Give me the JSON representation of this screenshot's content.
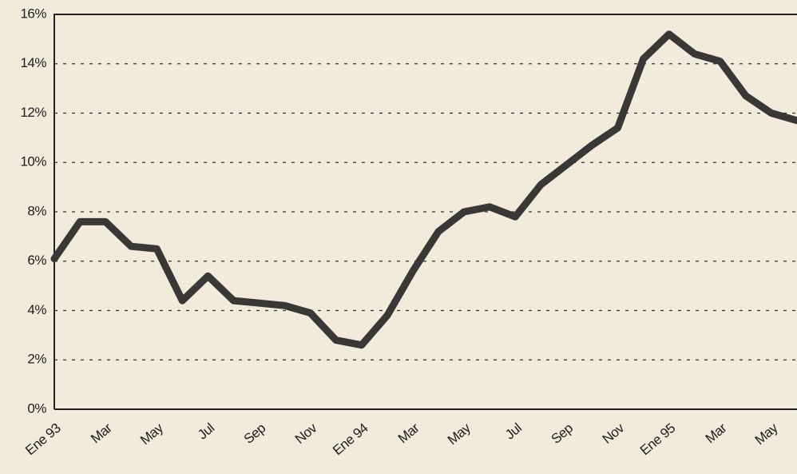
{
  "chart_data": {
    "type": "line",
    "categories": [
      "Ene 93",
      null,
      "Mar",
      null,
      "May",
      null,
      "Jul",
      null,
      "Sep",
      null,
      "Nov",
      null,
      "Ene 94",
      null,
      "Mar",
      null,
      "May",
      null,
      "Jul",
      null,
      "Sep",
      null,
      "Nov",
      null,
      "Ene 95",
      null,
      "Mar",
      null,
      "May",
      null
    ],
    "values": [
      6.1,
      7.6,
      7.6,
      6.6,
      6.5,
      4.4,
      5.4,
      4.4,
      4.3,
      4.2,
      3.9,
      2.8,
      2.6,
      3.8,
      5.6,
      7.2,
      8.0,
      8.2,
      7.8,
      9.1,
      9.9,
      10.7,
      11.4,
      14.2,
      15.2,
      14.4,
      14.1,
      12.7,
      12.0,
      11.7
    ],
    "color": "#3a3836",
    "ylim": [
      0,
      16
    ],
    "yticks": [
      {
        "value": 0,
        "label": "0%"
      },
      {
        "value": 2,
        "label": "2%"
      },
      {
        "value": 4,
        "label": "4%"
      },
      {
        "value": 6,
        "label": "6%"
      },
      {
        "value": 8,
        "label": "8%"
      },
      {
        "value": 10,
        "label": "10%"
      },
      {
        "value": 12,
        "label": "12%"
      },
      {
        "value": 14,
        "label": "14%"
      },
      {
        "value": 16,
        "label": "16%"
      }
    ],
    "grid": true
  }
}
